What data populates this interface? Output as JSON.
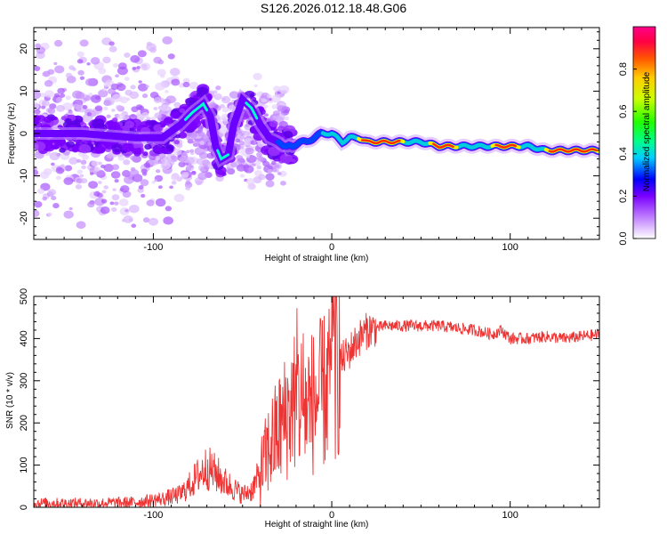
{
  "title": "S126.2026.012.18.48.G06",
  "chart_data": [
    {
      "type": "heatmap",
      "panel": "top",
      "xlabel": "Height of straight line (km)",
      "ylabel": "Frequency (Hz)",
      "xlim": [
        -167,
        150
      ],
      "ylim": [
        -25,
        25
      ],
      "xticks": [
        -100,
        0,
        100
      ],
      "yticks": [
        -20,
        -10,
        0,
        10,
        20
      ],
      "colorbar": {
        "label": "Normalized spectral amplitude",
        "range": [
          0,
          1
        ],
        "ticks": [
          "0.0",
          "0.2",
          "0.4",
          "0.6",
          "0.8"
        ]
      },
      "ridge": {
        "description": "dominant frequency track (Hz) vs height (km)",
        "x": [
          -167,
          -140,
          -110,
          -95,
          -85,
          -78,
          -72,
          -68,
          -65,
          -62,
          -58,
          -55,
          -50,
          -45,
          -40,
          -35,
          -30,
          -27,
          -22,
          -18,
          -14,
          -10,
          -6,
          -3,
          0,
          3,
          6,
          10,
          15,
          20,
          30,
          40,
          50,
          60,
          70,
          80,
          90,
          100,
          110,
          120,
          130,
          140,
          150
        ],
        "y": [
          0,
          0,
          -1,
          -1,
          2,
          5,
          7,
          4,
          -3,
          -6,
          -5,
          2,
          8,
          6,
          2,
          -1,
          -2,
          -3,
          -3,
          -2,
          -2,
          -1,
          0,
          0,
          0,
          -1,
          -2,
          -1,
          -1,
          -2,
          -2,
          -2,
          -2,
          -3,
          -3,
          -3,
          -3,
          -3,
          -3,
          -4,
          -4,
          -4,
          -4
        ]
      }
    },
    {
      "type": "line",
      "panel": "bottom",
      "xlabel": "Height of straight line (km)",
      "ylabel": "SNR (10 * v/v)",
      "xlim": [
        -167,
        150
      ],
      "ylim": [
        0,
        500
      ],
      "xticks": [
        -100,
        0,
        100
      ],
      "yticks": [
        0,
        100,
        200,
        300,
        400,
        500
      ],
      "color": "#ee3333",
      "series": [
        {
          "name": "SNR",
          "x": [
            -167,
            -150,
            -130,
            -110,
            -95,
            -85,
            -80,
            -75,
            -70,
            -65,
            -60,
            -55,
            -50,
            -45,
            -40,
            -35,
            -30,
            -25,
            -20,
            -15,
            -10,
            -5,
            -2,
            0,
            3,
            6,
            10,
            15,
            20,
            25,
            30,
            40,
            50,
            60,
            70,
            80,
            90,
            95,
            100,
            110,
            120,
            130,
            140,
            150
          ],
          "y": [
            10,
            10,
            10,
            12,
            20,
            30,
            50,
            75,
            95,
            80,
            60,
            45,
            30,
            40,
            80,
            140,
            180,
            220,
            260,
            240,
            250,
            270,
            290,
            300,
            330,
            350,
            370,
            400,
            420,
            425,
            430,
            430,
            430,
            430,
            425,
            420,
            410,
            420,
            400,
            400,
            405,
            400,
            405,
            410
          ]
        }
      ]
    }
  ]
}
